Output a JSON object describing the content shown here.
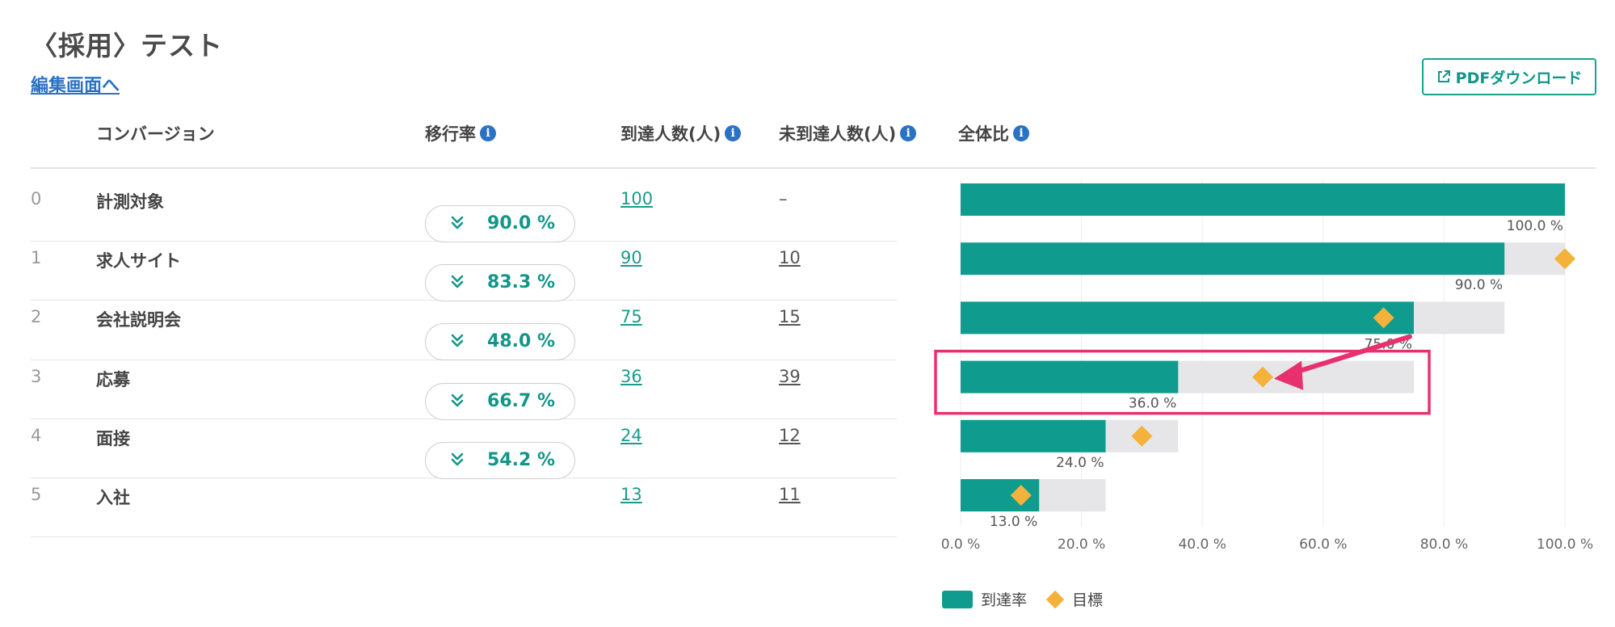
{
  "title": "〈採用〉テスト",
  "edit_link": "編集画面へ",
  "pdf_button": "PDFダウンロード",
  "columns": {
    "conversion": "コンバージョン",
    "transition_rate": "移行率",
    "reached": "到達人数(人)",
    "not_reached": "未到達人数(人)",
    "overall_ratio": "全体比"
  },
  "rows": [
    {
      "index": "0",
      "name": "計測対象",
      "reached": "100",
      "not_reached": "–"
    },
    {
      "index": "1",
      "name": "求人サイト",
      "reached": "90",
      "not_reached": "10"
    },
    {
      "index": "2",
      "name": "会社説明会",
      "reached": "75",
      "not_reached": "15"
    },
    {
      "index": "3",
      "name": "応募",
      "reached": "36",
      "not_reached": "39"
    },
    {
      "index": "4",
      "name": "面接",
      "reached": "24",
      "not_reached": "12"
    },
    {
      "index": "5",
      "name": "入社",
      "reached": "13",
      "not_reached": "11"
    }
  ],
  "transition_rates": [
    "90.0 %",
    "83.3 %",
    "48.0 %",
    "66.7 %",
    "54.2 %"
  ],
  "chart_data": {
    "type": "bar",
    "orientation": "horizontal",
    "categories": [
      "計測対象",
      "求人サイト",
      "会社説明会",
      "応募",
      "面接",
      "入社"
    ],
    "series": [
      {
        "name": "到達率",
        "values": [
          100,
          90,
          75,
          36,
          24,
          13
        ]
      },
      {
        "name": "目標",
        "values": [
          null,
          100,
          70,
          50,
          30,
          10
        ]
      }
    ],
    "previous_step_values": [
      100,
      100,
      90,
      75,
      36,
      24
    ],
    "data_labels": [
      "100.0 %",
      "90.0 %",
      "75.0 %",
      "36.0 %",
      "24.0 %",
      "13.0 %"
    ],
    "x_ticks": [
      "0.0 %",
      "20.0 %",
      "40.0 %",
      "60.0 %",
      "80.0 %",
      "100.0 %"
    ],
    "xlim": [
      0,
      100
    ],
    "grid": true,
    "legend": "bottom-left",
    "highlighted_row": 3,
    "colors": {
      "reach": "#0f9b8e",
      "background": "#e6e6e8",
      "target": "#f5b23b",
      "highlight": "#e8306e"
    }
  },
  "legend": {
    "reach": "到達率",
    "target": "目標"
  }
}
